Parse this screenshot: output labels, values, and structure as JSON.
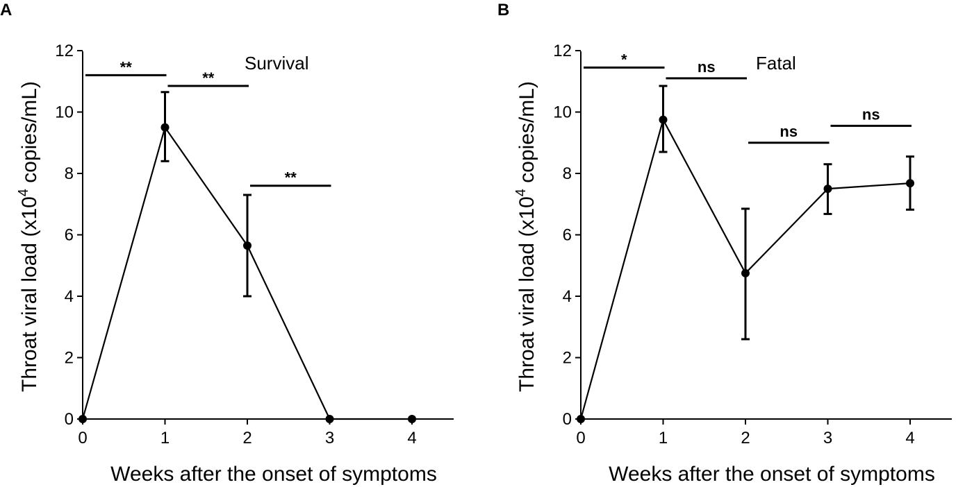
{
  "chart_data": [
    {
      "type": "line",
      "panel": "A",
      "series_name": "Survival",
      "xlabel": "Weeks after the onset of symptoms",
      "ylabel_prefix": "Throat viral load (x10",
      "ylabel_sup": "4",
      "ylabel_suffix": " copies/mL)",
      "xlim": [
        0,
        4.35
      ],
      "ylim": [
        0,
        12
      ],
      "x_ticks": [
        0,
        1,
        2,
        3,
        4
      ],
      "y_ticks": [
        0,
        2,
        4,
        6,
        8,
        10,
        12
      ],
      "x": [
        0,
        1,
        2,
        3,
        4
      ],
      "values": [
        0,
        9.5,
        5.65,
        0,
        0
      ],
      "error_bars": [
        {
          "x": 1,
          "low": 8.4,
          "high": 10.65
        },
        {
          "x": 2,
          "low": 4.0,
          "high": 7.3
        }
      ],
      "significance": [
        {
          "x1": 0,
          "x2": 1,
          "y": 11.2,
          "label": "**"
        },
        {
          "x1": 1,
          "x2": 2,
          "y": 10.85,
          "label": "**"
        },
        {
          "x1": 2,
          "x2": 3,
          "y": 7.6,
          "label": "**"
        }
      ]
    },
    {
      "type": "line",
      "panel": "B",
      "series_name": "Fatal",
      "xlabel": "Weeks after the onset of symptoms",
      "ylabel_prefix": "Throat viral load (x10",
      "ylabel_sup": "4",
      "ylabel_suffix": " copies/mL)",
      "xlim": [
        0,
        4.35
      ],
      "ylim": [
        0,
        12
      ],
      "x_ticks": [
        0,
        1,
        2,
        3,
        4
      ],
      "y_ticks": [
        0,
        2,
        4,
        6,
        8,
        10,
        12
      ],
      "x": [
        0,
        1,
        2,
        3,
        4
      ],
      "values": [
        0,
        9.75,
        4.75,
        7.5,
        7.68
      ],
      "error_bars": [
        {
          "x": 1,
          "low": 8.7,
          "high": 10.85
        },
        {
          "x": 2,
          "low": 2.6,
          "high": 6.85
        },
        {
          "x": 3,
          "low": 6.68,
          "high": 8.3
        },
        {
          "x": 4,
          "low": 6.82,
          "high": 8.55
        }
      ],
      "significance": [
        {
          "x1": 0,
          "x2": 1,
          "y": 11.45,
          "label": "*"
        },
        {
          "x1": 1,
          "x2": 2,
          "y": 11.1,
          "label": "ns"
        },
        {
          "x1": 2,
          "x2": 3,
          "y": 9.0,
          "label": "ns"
        },
        {
          "x1": 3,
          "x2": 4,
          "y": 9.55,
          "label": "ns"
        }
      ]
    }
  ]
}
